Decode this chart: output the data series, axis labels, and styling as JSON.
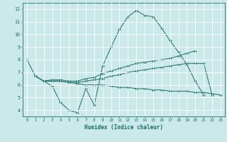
{
  "xlabel": "Humidex (Indice chaleur)",
  "bg_color": "#cce9ea",
  "grid_color": "#ffffff",
  "line_color": "#1a6e66",
  "xlim": [
    -0.5,
    23.5
  ],
  "ylim": [
    3.5,
    12.5
  ],
  "xticks": [
    0,
    1,
    2,
    3,
    4,
    5,
    6,
    7,
    8,
    9,
    10,
    11,
    12,
    13,
    14,
    15,
    16,
    17,
    18,
    19,
    20,
    21,
    22,
    23
  ],
  "yticks": [
    4,
    5,
    6,
    7,
    8,
    9,
    10,
    11,
    12
  ],
  "line1_x": [
    0,
    1,
    2,
    3,
    4,
    5,
    6,
    7,
    8,
    9,
    10,
    11,
    12,
    13,
    14,
    15,
    16,
    17,
    18,
    19,
    20,
    21
  ],
  "line1_y": [
    8.0,
    6.7,
    6.3,
    5.9,
    4.6,
    4.0,
    3.8,
    5.7,
    4.4,
    7.5,
    9.0,
    10.4,
    11.4,
    11.9,
    11.5,
    11.4,
    10.5,
    9.5,
    8.6,
    7.6,
    6.3,
    5.2
  ],
  "line2_x": [
    1,
    2,
    3,
    4,
    5,
    6,
    7,
    8,
    9,
    10,
    11,
    12,
    13,
    14,
    15,
    16,
    17,
    18,
    19,
    20
  ],
  "line2_y": [
    6.7,
    6.3,
    6.4,
    6.4,
    6.3,
    6.3,
    6.5,
    6.6,
    6.9,
    7.1,
    7.3,
    7.5,
    7.7,
    7.8,
    7.9,
    8.0,
    8.1,
    8.3,
    8.5,
    8.7
  ],
  "line3_x": [
    2,
    3,
    4,
    5,
    6,
    7,
    8,
    9,
    10,
    11,
    12,
    13,
    14,
    15,
    16,
    17,
    18,
    19,
    20,
    21,
    22
  ],
  "line3_y": [
    6.3,
    6.3,
    6.3,
    6.2,
    6.2,
    6.3,
    6.4,
    6.5,
    6.7,
    6.8,
    7.0,
    7.1,
    7.2,
    7.3,
    7.4,
    7.5,
    7.6,
    7.7,
    7.7,
    7.7,
    5.2
  ],
  "line4_x": [
    1,
    2,
    3,
    4,
    5,
    6,
    7,
    8,
    9,
    10,
    11,
    12,
    13,
    14,
    15,
    16,
    17,
    18,
    19,
    20,
    21,
    22,
    23
  ],
  "line4_y": [
    6.7,
    6.3,
    6.3,
    6.3,
    6.2,
    6.1,
    6.0,
    6.0,
    6.0,
    5.9,
    5.8,
    5.8,
    5.7,
    5.7,
    5.6,
    5.6,
    5.5,
    5.5,
    5.5,
    5.4,
    5.4,
    5.3,
    5.2
  ]
}
